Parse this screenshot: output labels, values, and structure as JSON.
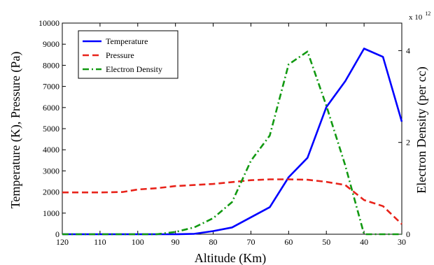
{
  "chart_data": {
    "type": "line",
    "title": "",
    "xlabel": "Altitude (Km)",
    "ylabel_left": "Temperature (K), Pressure (Pa)",
    "ylabel_right": "Electron Density (per cc)",
    "right_axis_multiplier_base": "x 10",
    "right_axis_multiplier_exp": "12",
    "xlim": [
      120,
      30
    ],
    "ylim_left": [
      0,
      10000
    ],
    "ylim_right": [
      0,
      4.6
    ],
    "x_ticks": [
      120,
      110,
      100,
      90,
      80,
      70,
      60,
      50,
      40,
      30
    ],
    "y_left_ticks": [
      0,
      1000,
      2000,
      3000,
      4000,
      5000,
      6000,
      7000,
      8000,
      9000,
      10000
    ],
    "y_right_ticks": [
      0,
      2,
      4
    ],
    "grid": false,
    "legend_position": "top-left",
    "series": [
      {
        "name": "Temperature",
        "axis": "left",
        "color": "#0000ff",
        "style": "solid",
        "x": [
          120,
          110,
          100,
          90,
          85,
          80,
          75,
          70,
          65,
          60,
          55,
          50,
          45,
          40,
          35,
          30
        ],
        "y": [
          0,
          0,
          0,
          0,
          20,
          150,
          320,
          800,
          1280,
          2700,
          3620,
          6020,
          7250,
          8790,
          8400,
          5330
        ]
      },
      {
        "name": "Pressure",
        "axis": "left",
        "color": "#e8231a",
        "style": "dashed",
        "x": [
          120,
          110,
          104,
          100,
          95,
          90,
          85,
          80,
          75,
          70,
          65,
          60,
          55,
          50,
          45,
          40,
          35,
          30
        ],
        "y": [
          1980,
          1980,
          2000,
          2120,
          2180,
          2280,
          2330,
          2380,
          2470,
          2560,
          2600,
          2600,
          2580,
          2480,
          2330,
          1620,
          1330,
          480
        ]
      },
      {
        "name": "Electron Density",
        "axis": "right",
        "color": "#119911",
        "style": "dash-dot",
        "x": [
          120,
          100,
          95,
          90,
          85,
          80,
          75,
          70,
          65,
          60,
          55,
          50,
          45,
          40,
          35,
          30
        ],
        "y": [
          0,
          0,
          0,
          0.05,
          0.15,
          0.35,
          0.7,
          1.6,
          2.15,
          3.7,
          3.98,
          2.8,
          1.5,
          0,
          0,
          0
        ]
      }
    ]
  }
}
